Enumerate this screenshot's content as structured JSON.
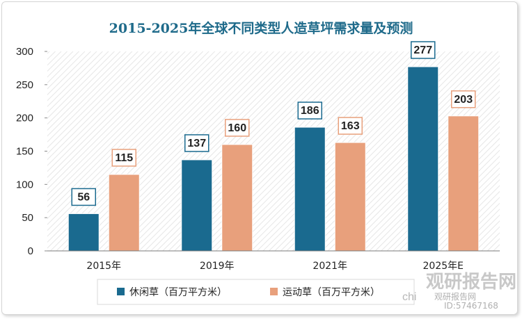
{
  "chart_data": {
    "type": "bar",
    "title": "2015-2025年全球不同类型人造草坪需求量及预测",
    "categories": [
      "2015年",
      "2019年",
      "2021年",
      "2025年E"
    ],
    "series": [
      {
        "name": "休闲草（百万平方米）",
        "values": [
          56,
          137,
          186,
          277
        ],
        "color": "#1a6a8f"
      },
      {
        "name": "运动草（百万平方米）",
        "values": [
          115,
          160,
          163,
          203
        ],
        "color": "#e8a07c"
      }
    ],
    "ylim": [
      0,
      300
    ],
    "yticks": [
      0,
      50,
      100,
      150,
      200,
      250,
      300
    ],
    "xlabel": "",
    "ylabel": "",
    "grid": false,
    "legend": "bottom"
  },
  "colors": {
    "title": "#1e6a8a",
    "label_border_primary": "#1a6a8f",
    "label_border_secondary": "#e8a07c"
  },
  "watermark": {
    "brand": "观研报告网",
    "latin": "chi",
    "site": "观研报告网",
    "id": "ID:57467168"
  }
}
